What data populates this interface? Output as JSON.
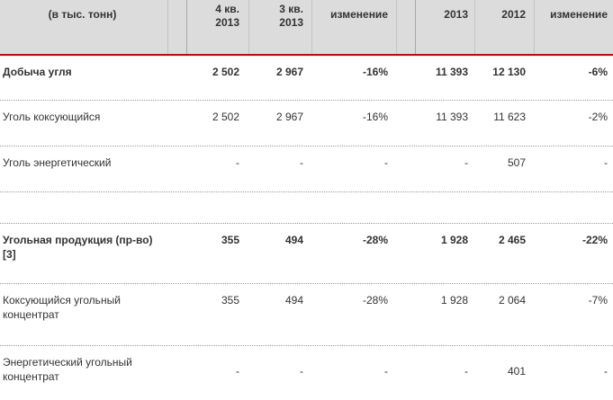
{
  "table": {
    "header": {
      "label": "(в тыс. тонн)",
      "q4": "4 кв.\n2013",
      "q3": "3 кв.\n2013",
      "change_q": "изменение",
      "y2013": "2013",
      "y2012": "2012",
      "change_y": "изменение"
    },
    "rows": [
      {
        "label": "Добыча угля",
        "q4": "2 502",
        "q3": "2 967",
        "change_q": "-16%",
        "y2013": "11 393",
        "y2012": "12 130",
        "change_y": "-6%"
      },
      {
        "label": "Уголь коксующийся",
        "q4": "2 502",
        "q3": "2 967",
        "change_q": "-16%",
        "y2013": "11 393",
        "y2012": "11 623",
        "change_y": "-2%"
      },
      {
        "label": "Уголь энергетический",
        "q4": "-",
        "q3": "-",
        "change_q": "-",
        "y2013": "-",
        "y2012": "507",
        "change_y": "-"
      },
      {
        "label": "",
        "q4": "",
        "q3": "",
        "change_q": "",
        "y2013": "",
        "y2012": "",
        "change_y": ""
      },
      {
        "label": "Угольная продукция (пр-во) [3]",
        "q4": "355",
        "q3": "494",
        "change_q": "-28%",
        "y2013": "1 928",
        "y2012": "2 465",
        "change_y": "-22%"
      },
      {
        "label": "Коксующийся угольный концентрат",
        "q4": "355",
        "q3": "494",
        "change_q": "-28%",
        "y2013": "1 928",
        "y2012": "2 064",
        "change_y": "-7%"
      },
      {
        "label": "Энергетический угольный концентрат",
        "q4": "-",
        "q3": "-",
        "change_q": "-",
        "y2013": "-",
        "y2012": "401",
        "change_y": "-"
      }
    ]
  },
  "colors": {
    "header_bg": "#dcdcdc",
    "accent_rule": "#d40000",
    "text": "#333333"
  }
}
